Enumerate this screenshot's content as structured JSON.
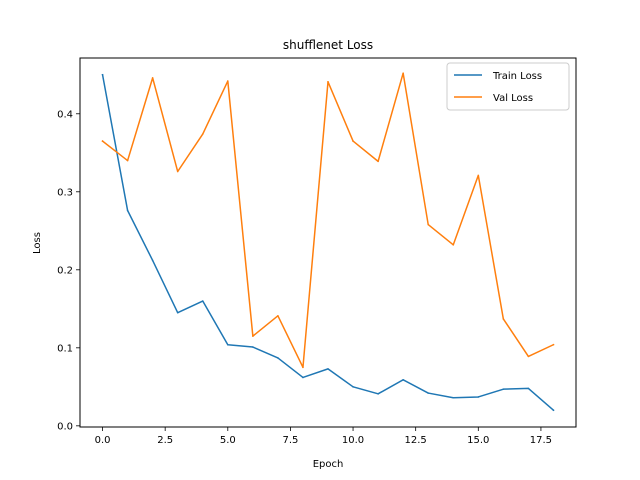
{
  "chart_data": {
    "type": "line",
    "title": "shufflenet Loss",
    "xlabel": "Epoch",
    "ylabel": "Loss",
    "xlim": [
      -0.9,
      18.9
    ],
    "ylim": [
      -0.0015,
      0.4715
    ],
    "x_ticks": [
      0.0,
      2.5,
      5.0,
      7.5,
      10.0,
      12.5,
      15.0,
      17.5
    ],
    "x_tick_labels": [
      "0.0",
      "2.5",
      "5.0",
      "7.5",
      "10.0",
      "12.5",
      "15.0",
      "17.5"
    ],
    "y_ticks": [
      0.0,
      0.1,
      0.2,
      0.3,
      0.4
    ],
    "y_tick_labels": [
      "0.0",
      "0.1",
      "0.2",
      "0.3",
      "0.4"
    ],
    "grid": false,
    "legend_position": "top-right",
    "x": [
      0,
      1,
      2,
      3,
      4,
      5,
      6,
      7,
      8,
      9,
      10,
      11,
      12,
      13,
      14,
      15,
      16,
      17,
      18
    ],
    "series": [
      {
        "name": "Train Loss",
        "color": "#1f77b4",
        "values": [
          0.45,
          0.276,
          0.212,
          0.145,
          0.16,
          0.104,
          0.101,
          0.087,
          0.062,
          0.073,
          0.05,
          0.041,
          0.059,
          0.042,
          0.036,
          0.037,
          0.047,
          0.048,
          0.02
        ]
      },
      {
        "name": "Val Loss",
        "color": "#ff7f0e",
        "values": [
          0.365,
          0.34,
          0.446,
          0.326,
          0.374,
          0.442,
          0.115,
          0.141,
          0.075,
          0.441,
          0.365,
          0.339,
          0.452,
          0.258,
          0.232,
          0.321,
          0.137,
          0.089,
          0.104
        ]
      }
    ]
  }
}
